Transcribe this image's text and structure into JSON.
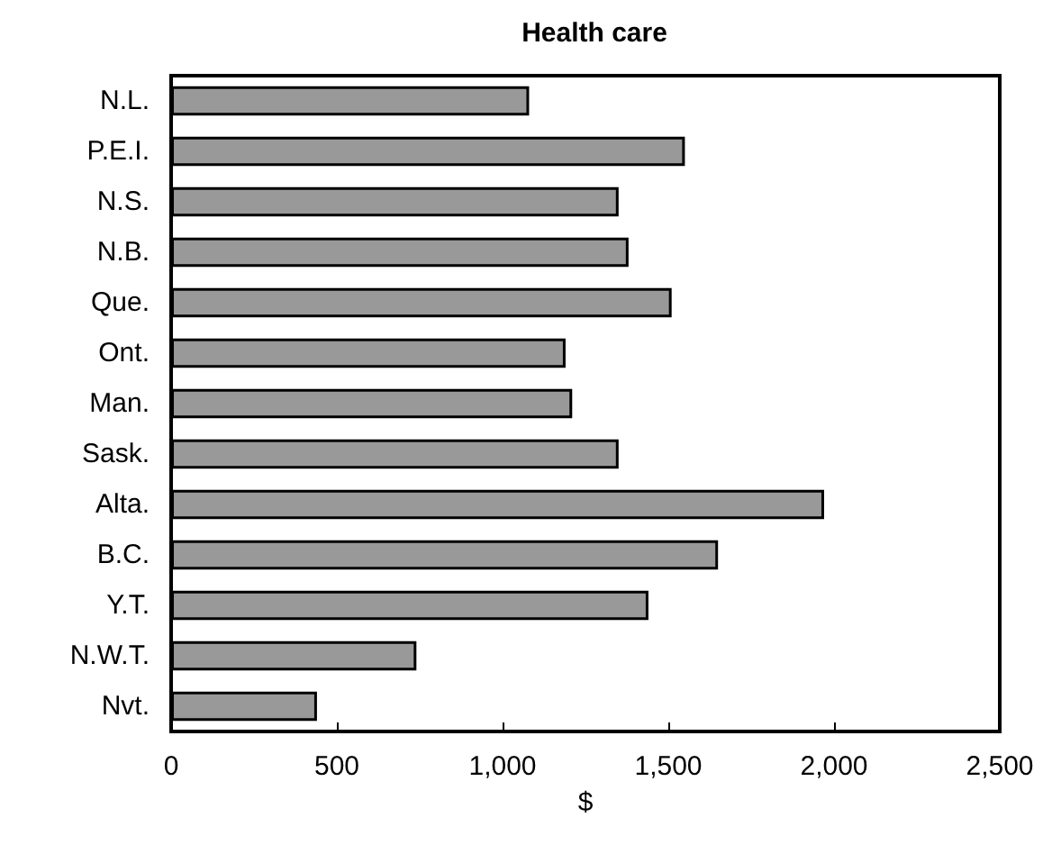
{
  "chart_data": {
    "type": "bar",
    "orientation": "horizontal",
    "title": "Health care",
    "xlabel": "$",
    "categories": [
      "N.L.",
      "P.E.I.",
      "N.S.",
      "N.B.",
      "Que.",
      "Ont.",
      "Man.",
      "Sask.",
      "Alta.",
      "B.C.",
      "Y.T.",
      "N.W.T.",
      "Nvt."
    ],
    "values": [
      1080,
      1550,
      1350,
      1380,
      1510,
      1190,
      1210,
      1350,
      1970,
      1650,
      1440,
      740,
      440
    ],
    "color": "#999999",
    "xlim": [
      0,
      2500
    ],
    "xticks": [
      0,
      {
        "value": 500,
        "label": "500"
      },
      {
        "value": 1000,
        "label": "1,000"
      },
      {
        "value": 1500,
        "label": "1,500"
      },
      {
        "value": 2000,
        "label": "2,000"
      },
      {
        "value": 2500,
        "label": "2,500"
      }
    ],
    "grid": false
  }
}
